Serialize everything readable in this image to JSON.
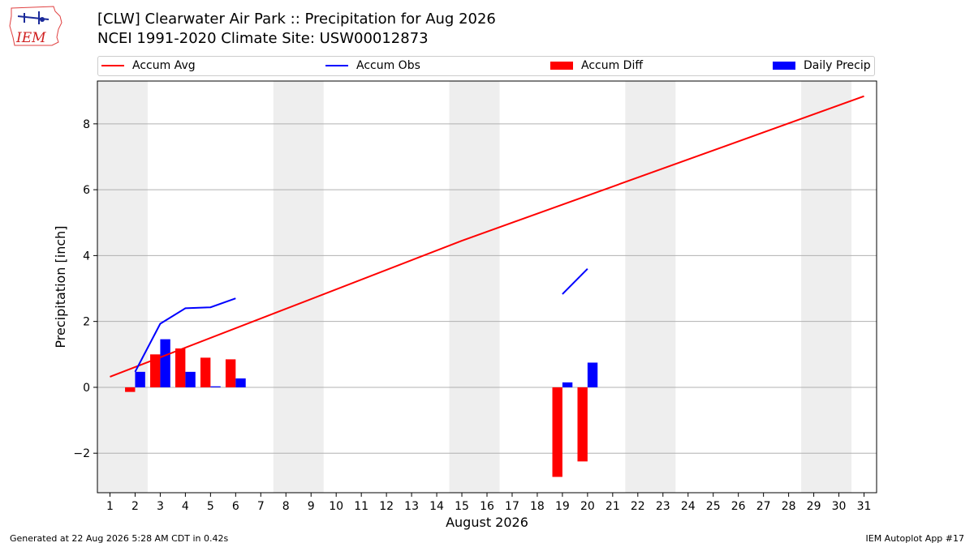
{
  "header": {
    "title": "[CLW] Clearwater Air Park :: Precipitation for Aug 2026",
    "subtitle": "NCEI 1991-2020 Climate Site: USW00012873",
    "logo_text": "IEM"
  },
  "footer": {
    "left": "Generated at 22 Aug 2026 5:28 AM CDT in 0.42s",
    "right": "IEM Autoplot App #17"
  },
  "colors": {
    "accum_avg": "#ff0000",
    "accum_obs": "#0000ff",
    "accum_diff": "#ff0000",
    "daily_precip": "#0000ff",
    "weekend_shade": "#eeeeee",
    "grid": "#b0b0b0"
  },
  "chart_data": {
    "type": "bar",
    "xlabel": "August 2026",
    "ylabel": "Precipitation [inch]",
    "xlim": [
      0.5,
      31.5
    ],
    "ylim": [
      -3.2,
      9.3
    ],
    "yticks": [
      -2,
      0,
      2,
      4,
      6,
      8
    ],
    "ytick_labels": [
      "−2",
      "0",
      "2",
      "4",
      "6",
      "8"
    ],
    "xticks": [
      1,
      2,
      3,
      4,
      5,
      6,
      7,
      8,
      9,
      10,
      11,
      12,
      13,
      14,
      15,
      16,
      17,
      18,
      19,
      20,
      21,
      22,
      23,
      24,
      25,
      26,
      27,
      28,
      29,
      30,
      31
    ],
    "xtick_labels": [
      "1",
      "2",
      "3",
      "4",
      "5",
      "6",
      "7",
      "8",
      "9",
      "10",
      "11",
      "12",
      "13",
      "14",
      "15",
      "16",
      "17",
      "18",
      "19",
      "20",
      "21",
      "22",
      "23",
      "24",
      "25",
      "26",
      "27",
      "28",
      "29",
      "30",
      "31"
    ],
    "grid": "horizontal",
    "legend_position": "top",
    "shaded_day_ranges": [
      [
        1,
        2
      ],
      [
        8,
        9
      ],
      [
        15,
        16
      ],
      [
        22,
        23
      ],
      [
        29,
        30
      ]
    ],
    "series": [
      {
        "name": "Accum Avg",
        "type": "line",
        "x": [
          1,
          15,
          31
        ],
        "values": [
          0.32,
          4.45,
          8.84
        ]
      },
      {
        "name": "Accum Obs",
        "type": "line",
        "segments": [
          {
            "x": [
              2,
              3,
              4,
              5,
              6
            ],
            "values": [
              0.47,
              1.93,
              2.4,
              2.43,
              2.7
            ]
          },
          {
            "x": [
              19,
              20
            ],
            "values": [
              2.83,
              3.6
            ]
          }
        ]
      },
      {
        "name": "Accum Diff",
        "type": "bar",
        "x": [
          2,
          3,
          4,
          5,
          6,
          19,
          20
        ],
        "values": [
          -0.14,
          1.0,
          1.18,
          0.9,
          0.85,
          -2.72,
          -2.25
        ]
      },
      {
        "name": "Daily Precip",
        "type": "bar",
        "x": [
          2,
          3,
          4,
          5,
          6,
          19,
          20
        ],
        "values": [
          0.47,
          1.46,
          0.47,
          0.03,
          0.27,
          0.15,
          0.75
        ]
      }
    ]
  }
}
